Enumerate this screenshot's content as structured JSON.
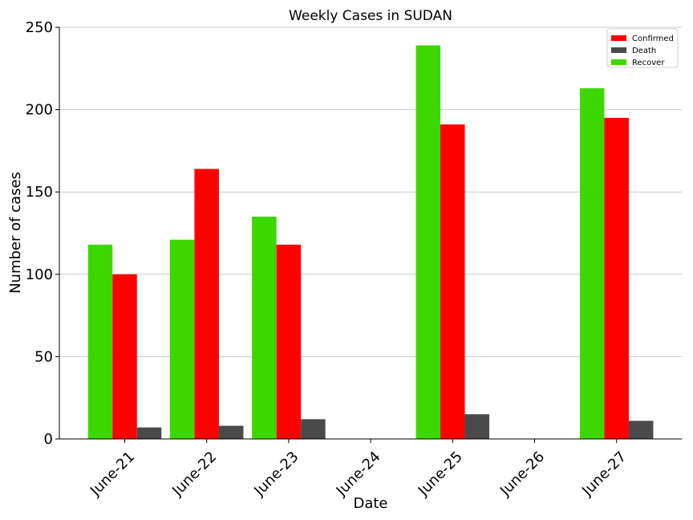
{
  "chart_data": {
    "type": "bar",
    "title": "Weekly Cases in SUDAN",
    "xlabel": "Date",
    "ylabel": "Number of cases",
    "categories": [
      "June-21",
      "June-22",
      "June-23",
      "June-24",
      "June-25",
      "June-26",
      "June-27"
    ],
    "ylim": [
      0,
      250
    ],
    "yticks": [
      "0",
      "50",
      "100",
      "150",
      "200",
      "250"
    ],
    "ytick_values": [
      0,
      50,
      100,
      150,
      200,
      250
    ],
    "grid": "horizontal",
    "legend_position": "top-right",
    "series": [
      {
        "name": "Recover",
        "color": "#3dd700",
        "values": [
          118,
          121,
          135,
          0,
          239,
          0,
          213
        ]
      },
      {
        "name": "Confirmed",
        "color": "#ff0000",
        "values": [
          100,
          164,
          118,
          0,
          191,
          0,
          195
        ]
      },
      {
        "name": "Death",
        "color": "#4a4a4a",
        "values": [
          7,
          8,
          12,
          0,
          15,
          0,
          11
        ]
      }
    ],
    "legend_order": [
      "Confirmed",
      "Death",
      "Recover"
    ]
  }
}
